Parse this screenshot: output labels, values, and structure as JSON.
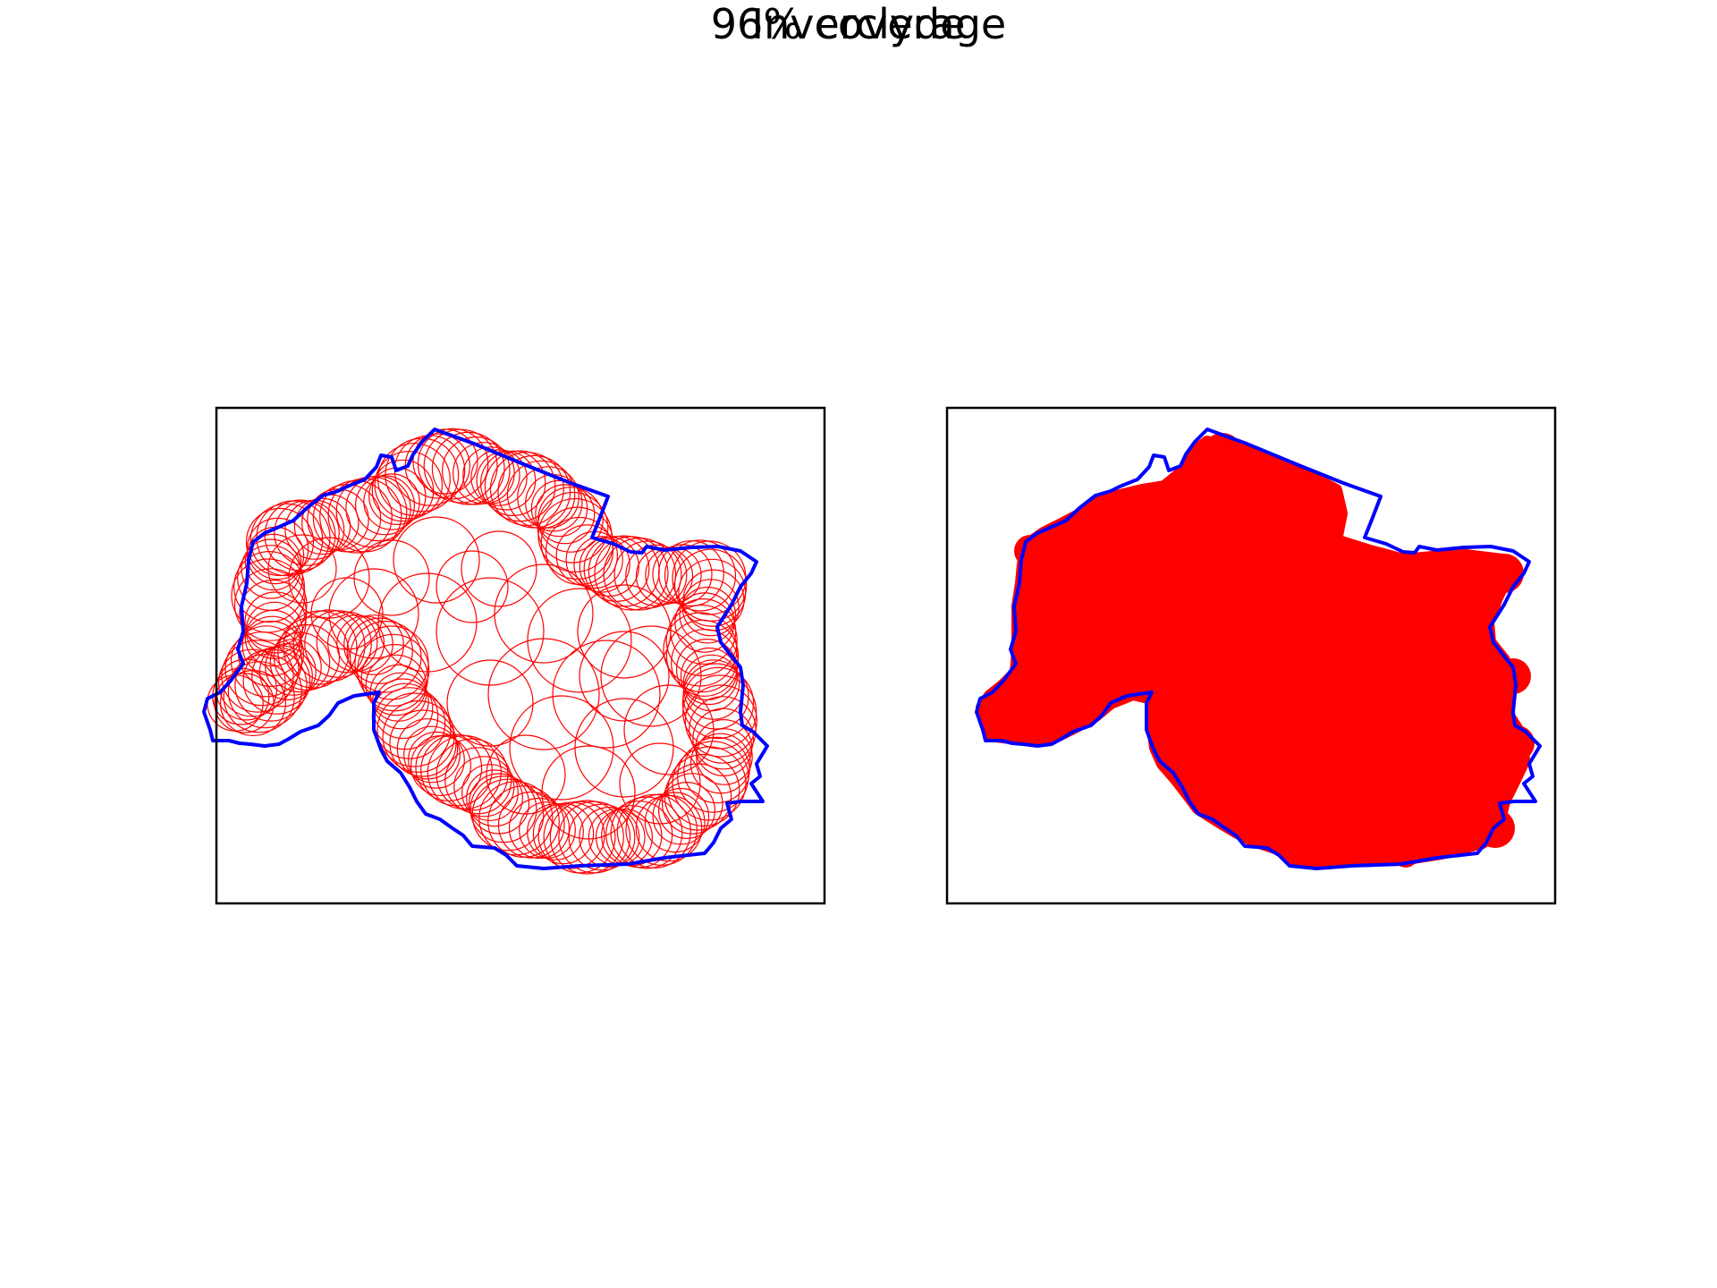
{
  "figure": {
    "title": "Inverclyde",
    "subtitle": "96% coverage"
  },
  "colors": {
    "boundary": "#0000ff",
    "coverage": "#ff0000",
    "frame": "#000000",
    "background": "#ffffff"
  },
  "panels": [
    {
      "id": "left",
      "style": "circle-outlines"
    },
    {
      "id": "right",
      "style": "filled-union"
    }
  ]
}
